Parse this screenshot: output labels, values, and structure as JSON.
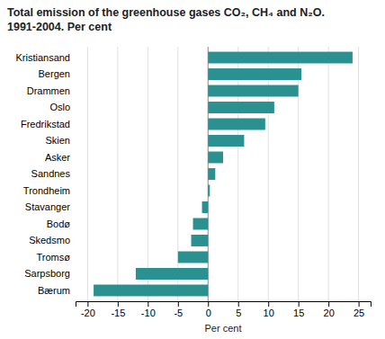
{
  "chart_data": {
    "type": "bar",
    "orientation": "horizontal",
    "title": "Total emission of the greenhouse gases CO₂, CH₄ and N₂O.\n1991-2004. Per cent",
    "xlabel": "Per cent",
    "categories": [
      "Kristiansand",
      "Bergen",
      "Drammen",
      "Oslo",
      "Fredrikstad",
      "Skien",
      "Asker",
      "Sandnes",
      "Trondheim",
      "Stavanger",
      "Bodø",
      "Skedsmo",
      "Tromsø",
      "Sarpsborg",
      "Bærum"
    ],
    "values": [
      24,
      15.5,
      15,
      11,
      9.5,
      6,
      2.5,
      1.2,
      0.3,
      -1,
      -2.5,
      -2.8,
      -5,
      -12,
      -19
    ],
    "color": "#2a9090",
    "xlim": [
      -22,
      27
    ],
    "xticks": [
      -20,
      -15,
      -10,
      -5,
      0,
      5,
      10,
      15,
      20,
      25
    ],
    "grid": true
  }
}
